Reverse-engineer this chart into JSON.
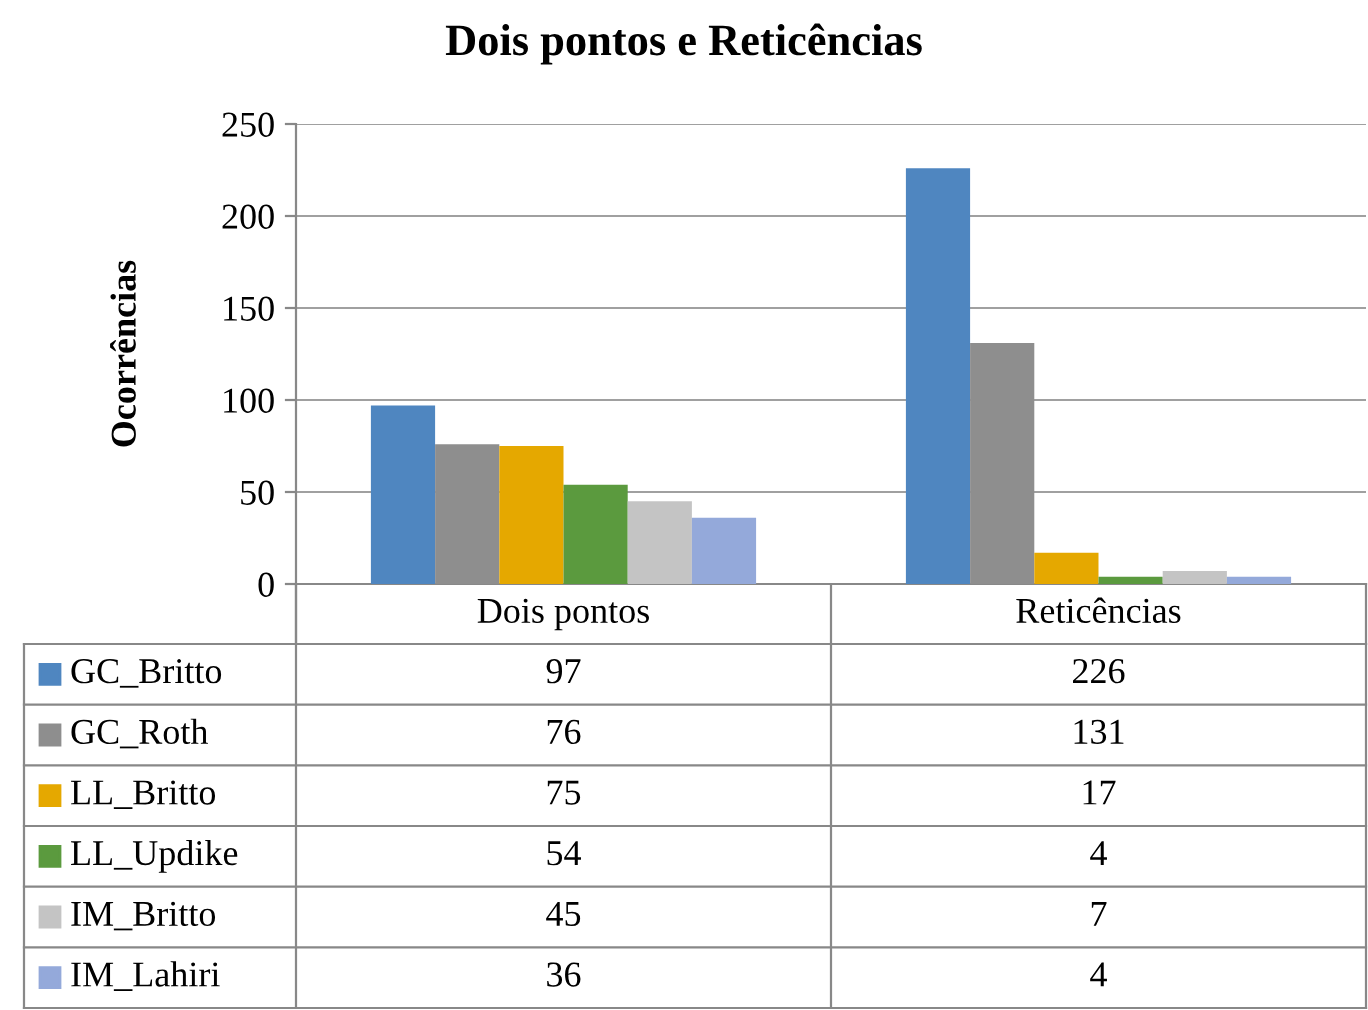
{
  "chart_data": {
    "type": "bar",
    "title": "Dois pontos e Reticências",
    "ylabel": "Ocorrências",
    "categories": [
      "Dois pontos",
      "Reticências"
    ],
    "series": [
      {
        "name": "GC_Britto",
        "color": "#4f86c0",
        "values": [
          97,
          226
        ]
      },
      {
        "name": "GC_Roth",
        "color": "#8e8e8e",
        "values": [
          76,
          131
        ]
      },
      {
        "name": "LL_Britto",
        "color": "#e5a800",
        "values": [
          75,
          17
        ]
      },
      {
        "name": "LL_Updike",
        "color": "#5b9a3e",
        "values": [
          54,
          4
        ]
      },
      {
        "name": "IM_Britto",
        "color": "#c4c4c4",
        "values": [
          45,
          7
        ]
      },
      {
        "name": "IM_Lahiri",
        "color": "#94a9da",
        "values": [
          36,
          4
        ]
      }
    ],
    "ylim": [
      0,
      250
    ],
    "yticks": [
      0,
      50,
      100,
      150,
      200,
      250
    ],
    "grid": "y",
    "legend": "bottom left",
    "data_labels": true
  }
}
